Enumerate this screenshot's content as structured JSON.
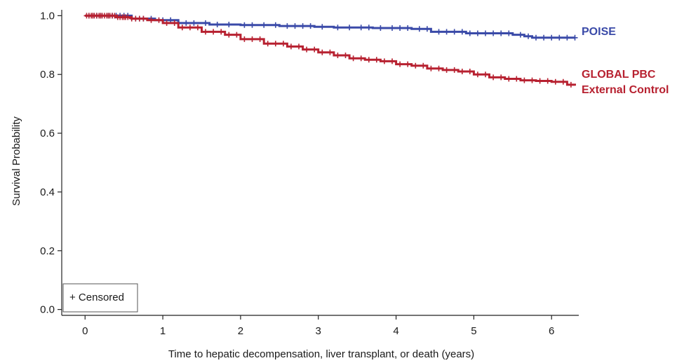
{
  "chart_data": {
    "type": "line",
    "subtype": "kaplan-meier",
    "xlabel": "Time to hepatic decompensation, liver transplant, or death (years)",
    "ylabel": "Survival Probability",
    "xlim": [
      -0.3,
      6.35
    ],
    "ylim": [
      -0.02,
      1.02
    ],
    "xticks": [
      0,
      1,
      2,
      3,
      4,
      5,
      6
    ],
    "yticks": [
      0.0,
      0.2,
      0.4,
      0.6,
      0.8,
      1.0
    ],
    "xtick_labels": [
      "0",
      "1",
      "2",
      "3",
      "4",
      "5",
      "6"
    ],
    "ytick_labels": [
      "0.0",
      "0.2",
      "0.4",
      "0.6",
      "0.8",
      "1.0"
    ],
    "grid": false,
    "legend": {
      "text": "+ Censored",
      "placement": "bottom-left"
    },
    "series": [
      {
        "name": "POISE",
        "label_lines": [
          "POISE"
        ],
        "color": "#3a4aa8",
        "x": [
          0,
          0.6,
          0.9,
          1.2,
          1.6,
          2.0,
          2.5,
          2.95,
          3.2,
          3.7,
          4.2,
          4.45,
          4.9,
          5.5,
          5.65,
          5.75,
          6.3
        ],
        "y": [
          1.0,
          0.99,
          0.985,
          0.975,
          0.97,
          0.968,
          0.965,
          0.962,
          0.96,
          0.958,
          0.955,
          0.945,
          0.94,
          0.935,
          0.93,
          0.925,
          0.925
        ],
        "censored_x": [
          0.05,
          0.1,
          0.15,
          0.2,
          0.3,
          0.35,
          0.4,
          0.45,
          0.5,
          0.55,
          0.65,
          0.7,
          0.75,
          0.85,
          1.0,
          1.1,
          1.3,
          1.4,
          1.55,
          1.7,
          1.85,
          2.05,
          2.15,
          2.3,
          2.45,
          2.6,
          2.7,
          2.8,
          2.9,
          3.05,
          3.25,
          3.4,
          3.55,
          3.65,
          3.8,
          3.95,
          4.05,
          4.15,
          4.3,
          4.4,
          4.55,
          4.65,
          4.75,
          4.85,
          4.95,
          5.05,
          5.15,
          5.25,
          5.35,
          5.45,
          5.6,
          5.7,
          5.8,
          5.9,
          6.0,
          6.1,
          6.2,
          6.3
        ]
      },
      {
        "name": "GLOBAL PBC External Control",
        "label_lines": [
          "GLOBAL PBC",
          "External Control"
        ],
        "color": "#b72130",
        "x": [
          0,
          0.4,
          0.6,
          0.8,
          1.0,
          1.2,
          1.5,
          1.8,
          2.0,
          2.3,
          2.6,
          2.8,
          3.0,
          3.2,
          3.4,
          3.6,
          3.8,
          4.0,
          4.2,
          4.4,
          4.6,
          4.8,
          5.0,
          5.2,
          5.4,
          5.6,
          5.8,
          6.0,
          6.2,
          6.3
        ],
        "y": [
          1.0,
          0.995,
          0.99,
          0.985,
          0.975,
          0.96,
          0.945,
          0.935,
          0.92,
          0.905,
          0.895,
          0.885,
          0.875,
          0.865,
          0.855,
          0.85,
          0.845,
          0.835,
          0.83,
          0.82,
          0.815,
          0.81,
          0.8,
          0.79,
          0.785,
          0.78,
          0.778,
          0.775,
          0.765,
          0.762
        ],
        "censored_x": [
          0.02,
          0.05,
          0.08,
          0.1,
          0.12,
          0.15,
          0.18,
          0.2,
          0.22,
          0.25,
          0.28,
          0.3,
          0.32,
          0.35,
          0.38,
          0.42,
          0.45,
          0.48,
          0.5,
          0.52,
          0.55,
          0.6,
          0.65,
          0.7,
          0.75,
          0.85,
          0.95,
          1.05,
          1.15,
          1.25,
          1.35,
          1.45,
          1.55,
          1.65,
          1.75,
          1.85,
          1.95,
          2.05,
          2.15,
          2.25,
          2.35,
          2.45,
          2.55,
          2.65,
          2.75,
          2.85,
          2.95,
          3.05,
          3.15,
          3.25,
          3.35,
          3.45,
          3.55,
          3.65,
          3.75,
          3.85,
          3.95,
          4.05,
          4.15,
          4.25,
          4.35,
          4.45,
          4.55,
          4.65,
          4.75,
          4.85,
          4.95,
          5.05,
          5.15,
          5.25,
          5.35,
          5.45,
          5.55,
          5.65,
          5.75,
          5.85,
          5.95,
          6.05,
          6.15,
          6.25
        ]
      }
    ]
  }
}
